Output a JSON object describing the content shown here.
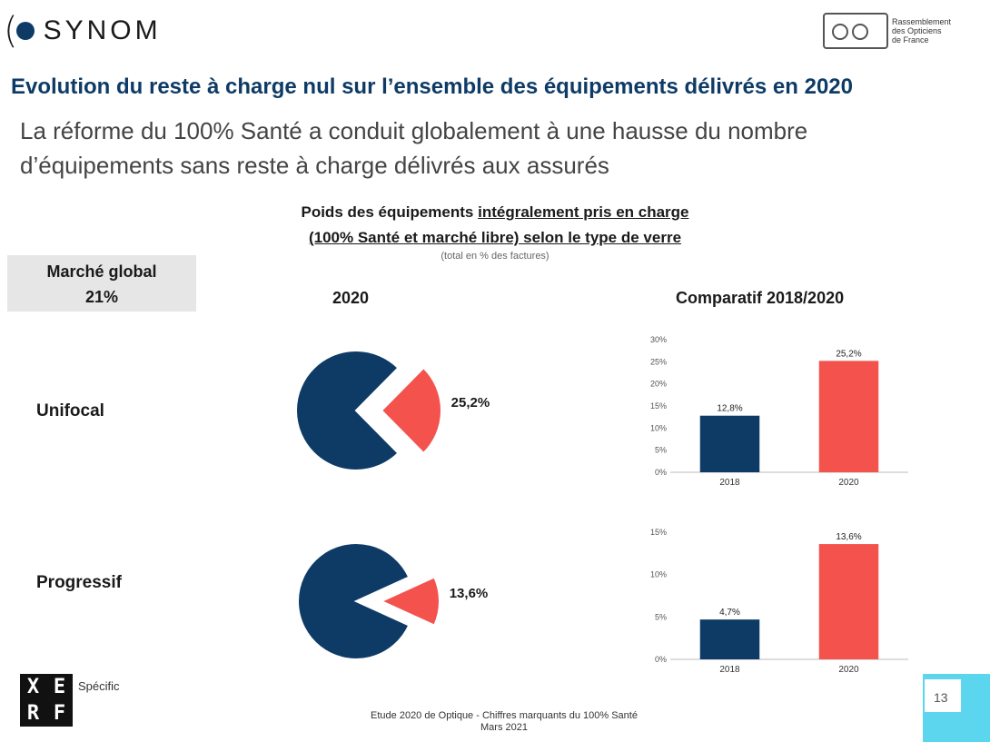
{
  "header": {
    "brand": "SYNOM",
    "partner_logo_lines": [
      "Rassemblement",
      "des Opticiens",
      "de France"
    ]
  },
  "title": "Evolution du reste à charge nul sur l’ensemble des équipements délivrés en 2020",
  "subtitle_line1": "La réforme du 100% Santé a conduit globalement à une hausse du nombre",
  "subtitle_line2": "d’équipements sans reste à charge délivrés aux assurés",
  "chart_heading_line1_prefix": "Poids des équipements ",
  "chart_heading_line1_underlined": "intégralement pris en charge",
  "chart_heading_line2": "(100% Santé et marché libre) selon le type de verre",
  "chart_note": "(total en % des factures)",
  "global_box": {
    "label": "Marché global",
    "value": "21%"
  },
  "column_headers": {
    "pie": "2020",
    "bar": "Comparatif 2018/2020"
  },
  "chart_data": [
    {
      "type": "pie",
      "row_label": "Unifocal",
      "slices": [
        {
          "label": "",
          "value": 74.8,
          "color": "#0e3b66"
        },
        {
          "label": "25,2%",
          "value": 25.2,
          "color": "#f4524d"
        }
      ]
    },
    {
      "type": "bar",
      "row_label": "Unifocal",
      "categories": [
        "2018",
        "2020"
      ],
      "values": [
        12.8,
        25.2
      ],
      "data_labels": [
        "12,8%",
        "25,2%"
      ],
      "colors": [
        "#0e3b66",
        "#f4524d"
      ],
      "ylim": [
        0,
        30
      ],
      "yticks": [
        0,
        5,
        10,
        15,
        20,
        25,
        30
      ],
      "ytick_labels": [
        "0%",
        "5%",
        "10%",
        "15%",
        "20%",
        "25%",
        "30%"
      ]
    },
    {
      "type": "pie",
      "row_label": "Progressif",
      "slices": [
        {
          "label": "",
          "value": 86.4,
          "color": "#0e3b66"
        },
        {
          "label": "13,6%",
          "value": 13.6,
          "color": "#f4524d"
        }
      ]
    },
    {
      "type": "bar",
      "row_label": "Progressif",
      "categories": [
        "2018",
        "2020"
      ],
      "values": [
        4.7,
        13.6
      ],
      "data_labels": [
        "4,7%",
        "13,6%"
      ],
      "colors": [
        "#0e3b66",
        "#f4524d"
      ],
      "ylim": [
        0,
        15
      ],
      "yticks": [
        0,
        5,
        10,
        15
      ],
      "ytick_labels": [
        "0%",
        "5%",
        "10%",
        "15%"
      ]
    }
  ],
  "footer": {
    "source_line1": "Etude 2020 de Optique - Chiffres marquants du 100% Santé",
    "source_line2": "Mars 2021",
    "xerfi_letters": [
      "X",
      "E",
      "R",
      "F"
    ],
    "xerfi_tag": "Spécific",
    "page_number": "13"
  }
}
